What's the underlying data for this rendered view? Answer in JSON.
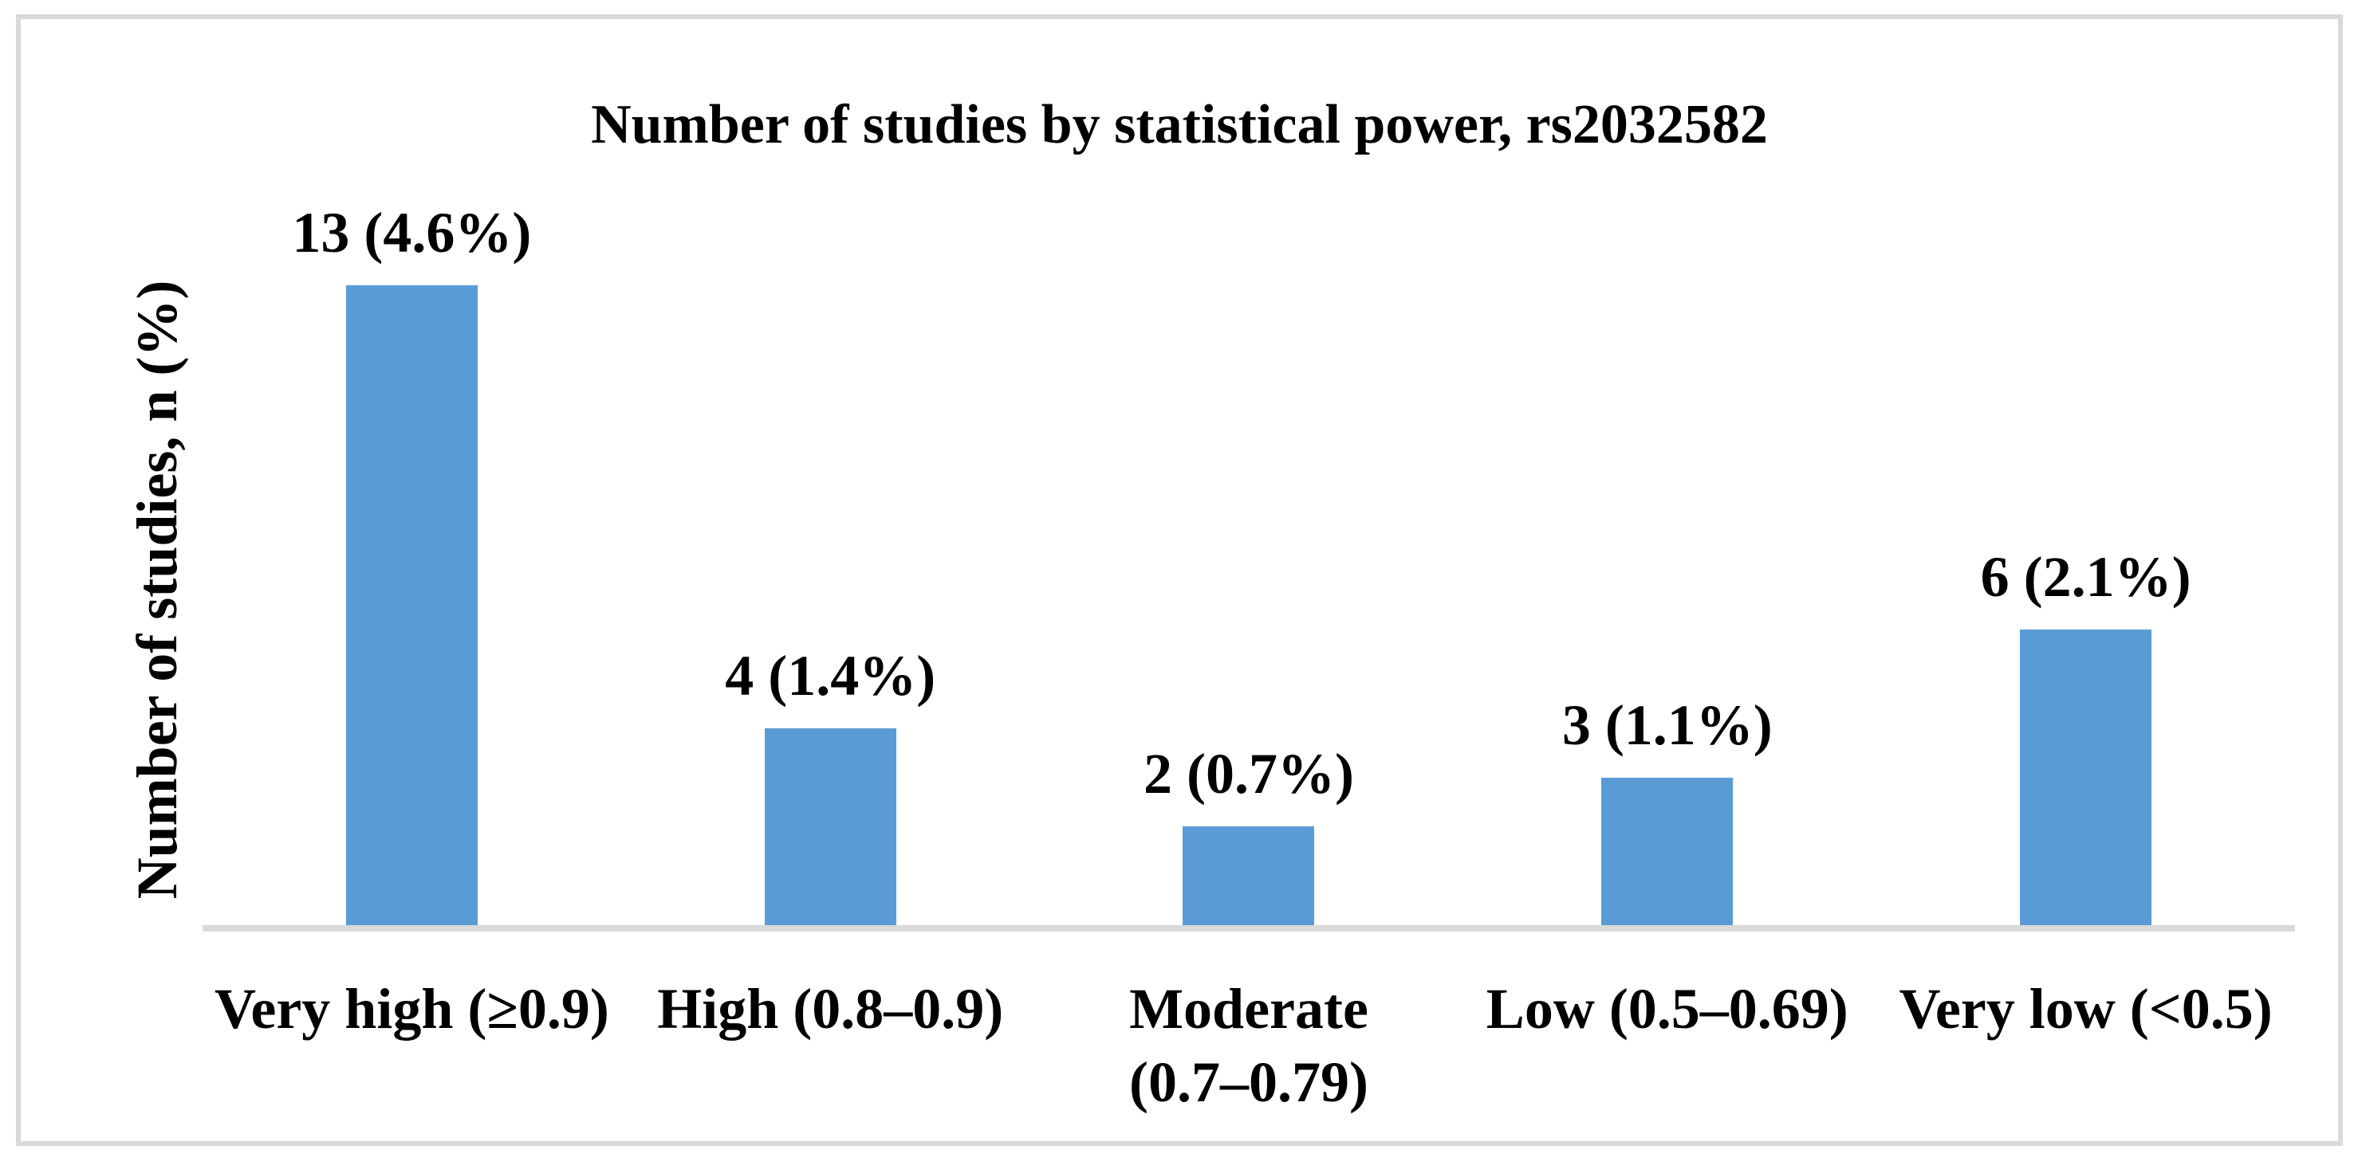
{
  "chart_data": {
    "type": "bar",
    "title": "Number of studies by statistical power, rs2032582",
    "xlabel": "",
    "ylabel": "Number of studies, n (%)",
    "categories": [
      "Very high (≥0.9)",
      "High (0.8–0.9)",
      "Moderate\n(0.7–0.79)",
      "Low (0.5–0.69)",
      "Very low (<0.5)"
    ],
    "values": [
      13,
      4,
      2,
      3,
      6
    ],
    "data_labels": [
      "13 (4.6%)",
      "4 (1.4%)",
      "2 (0.7%)",
      "3 (1.1%)",
      "6 (2.1%)"
    ],
    "ylim": [
      0,
      16
    ],
    "grid": false,
    "legend": null,
    "colors": {
      "bar": "#5B9BD5",
      "axis_line": "#D9D9D9",
      "frame_border": "#D9D9D9",
      "text": "#000000",
      "background": "#FFFFFF"
    }
  }
}
